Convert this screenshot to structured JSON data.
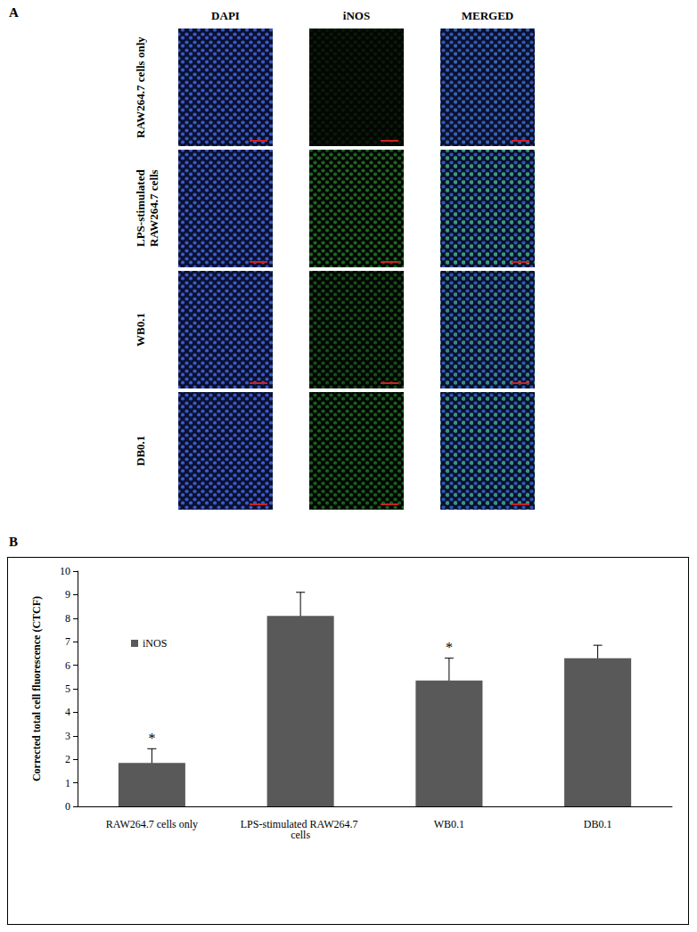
{
  "panel_labels": [
    "A",
    "B"
  ],
  "image_grid": {
    "columns": [
      "DAPI",
      "iNOS",
      "MERGED"
    ],
    "rows": [
      "RAW264.7 cells only",
      "LPS-stimulated RAW264.7 cells",
      "WB0.1",
      "DB0.1"
    ]
  },
  "chart_data": {
    "type": "bar",
    "categories": [
      "RAW264.7 cells only",
      "LPS-stimulated RAW264.7 cells",
      "WB0.1",
      "DB0.1"
    ],
    "series": [
      {
        "name": "iNOS",
        "color": "#595959",
        "values": [
          1.85,
          8.1,
          5.35,
          6.3
        ],
        "errors": [
          0.6,
          1.0,
          0.95,
          0.55
        ],
        "significance": [
          "*",
          null,
          "*",
          null
        ]
      }
    ],
    "y_label": "Corrected total cell fluorescence (CTCF)",
    "ylim": [
      0,
      10
    ],
    "yticks": [
      0,
      1,
      2,
      3,
      4,
      5,
      6,
      7,
      8,
      9,
      10
    ],
    "grid": false,
    "legend": "upper left"
  }
}
